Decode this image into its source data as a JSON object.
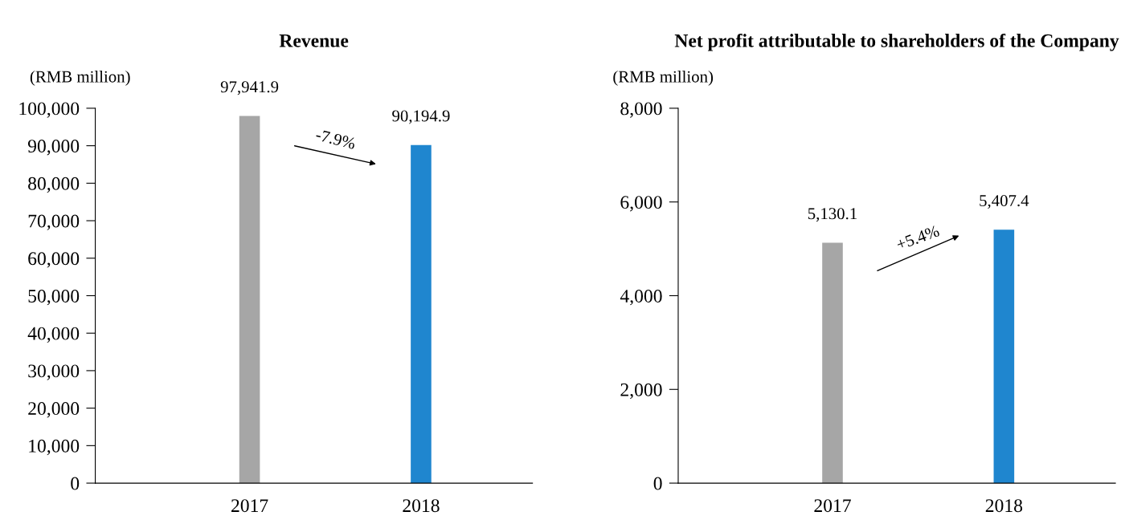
{
  "chart_data": [
    {
      "type": "bar",
      "title": "Revenue",
      "ylabel": "(RMB million)",
      "categories": [
        "2017",
        "2018"
      ],
      "values": [
        97941.9,
        90194.9
      ],
      "colors": [
        "#a6a6a6",
        "#1f86cf"
      ],
      "value_labels": [
        "97,941.9",
        "90,194.9"
      ],
      "annotations": [
        "-7.9%"
      ],
      "ylim": [
        0,
        100000
      ],
      "yticks": [
        0,
        {
          "value": 10000,
          "label": "10,000"
        },
        {
          "value": 20000,
          "label": "20,000"
        },
        {
          "value": 30000,
          "label": "30,000"
        },
        {
          "value": 40000,
          "label": "40,000"
        },
        {
          "value": 50000,
          "label": "50,000"
        },
        {
          "value": 60000,
          "label": "60,000"
        },
        {
          "value": 70000,
          "label": "70,000"
        },
        {
          "value": 80000,
          "label": "80,000"
        },
        {
          "value": 90000,
          "label": "90,000"
        },
        {
          "value": 100000,
          "label": "100,000"
        }
      ]
    },
    {
      "type": "bar",
      "title": "Net profit attributable to shareholders of the Company",
      "ylabel": "(RMB million)",
      "categories": [
        "2017",
        "2018"
      ],
      "values": [
        5130.1,
        5407.4
      ],
      "colors": [
        "#a6a6a6",
        "#1f86cf"
      ],
      "value_labels": [
        "5,130.1",
        "5,407.4"
      ],
      "annotations": [
        "+5.4%"
      ],
      "ylim": [
        0,
        8000
      ],
      "yticks": [
        0,
        {
          "value": 2000,
          "label": "2,000"
        },
        {
          "value": 4000,
          "label": "4,000"
        },
        {
          "value": 6000,
          "label": "6,000"
        },
        {
          "value": 8000,
          "label": "8,000"
        }
      ]
    }
  ]
}
